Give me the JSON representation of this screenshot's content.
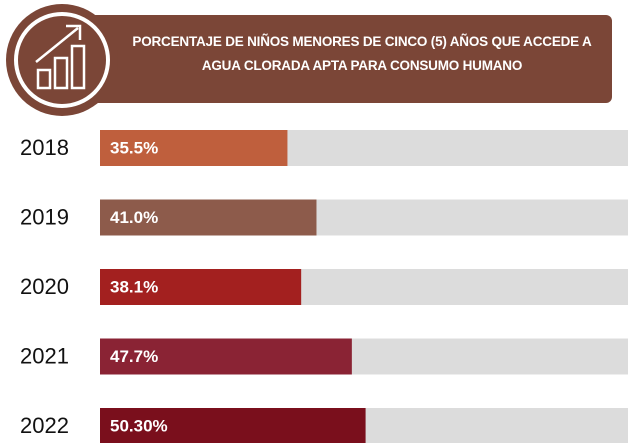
{
  "chart_data": {
    "type": "bar",
    "orientation": "horizontal",
    "title": "PORCENTAJE DE NIÑOS MENORES DE CINCO (5) AÑOS QUE ACCEDE A AGUA CLORADA APTA PARA CONSUMO HUMANO",
    "categories": [
      "2018",
      "2019",
      "2020",
      "2021",
      "2022"
    ],
    "values": [
      35.5,
      41.0,
      38.1,
      47.7,
      50.3
    ],
    "value_labels": [
      "35.5%",
      "41.0%",
      "38.1%",
      "47.7%",
      "50.30%"
    ],
    "colors": [
      "#bf5f3d",
      "#8d5b4b",
      "#a3201f",
      "#8a2334",
      "#7a0f1c"
    ],
    "track_color": "#dcdcdc",
    "xlim": [
      0,
      100
    ]
  }
}
